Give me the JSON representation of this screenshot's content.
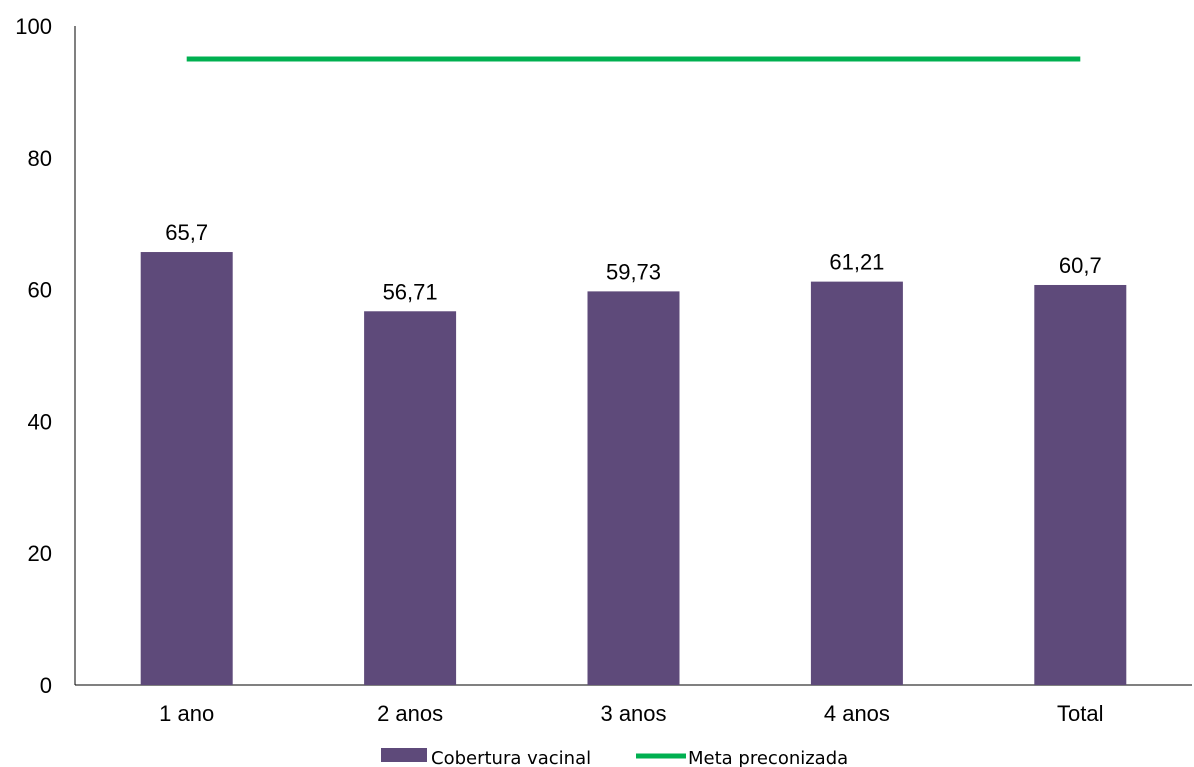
{
  "chart_data": {
    "type": "bar",
    "categories": [
      "1 ano",
      "2 anos",
      "3 anos",
      "4 anos",
      "Total"
    ],
    "series": [
      {
        "name": "Cobertura vacinal",
        "type": "bar",
        "values": [
          65.7,
          56.71,
          59.73,
          61.21,
          60.7
        ],
        "color": "#5e4a7a"
      },
      {
        "name": "Meta preconizada",
        "type": "line",
        "values": [
          95,
          95,
          95,
          95,
          95
        ],
        "color": "#00b050"
      }
    ],
    "data_labels": [
      "65,7",
      "56,71",
      "59,73",
      "61,21",
      "60,7"
    ],
    "y_ticks": [
      "0",
      "20",
      "40",
      "60",
      "80",
      "100"
    ],
    "ylim": [
      0,
      100
    ],
    "grid": false,
    "legend_position": "bottom",
    "title": "",
    "xlabel": "",
    "ylabel": ""
  }
}
